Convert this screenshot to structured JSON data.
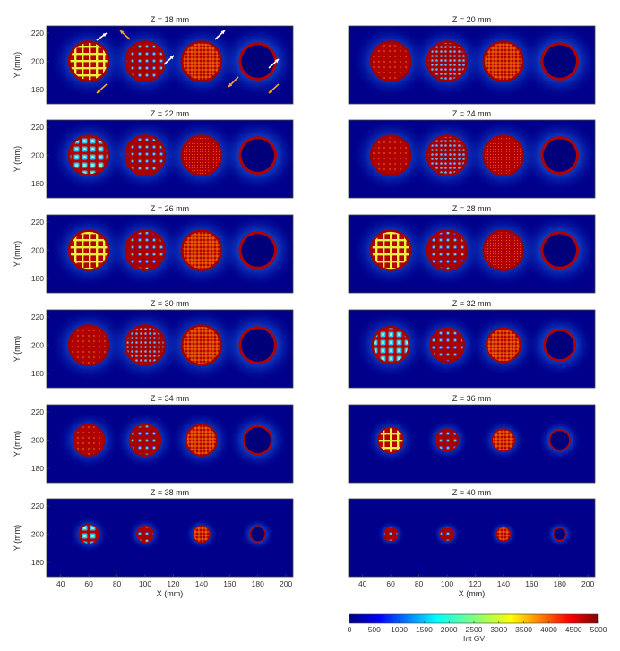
{
  "figure": {
    "colorbar": {
      "label": "Int GV",
      "ticks": [
        0,
        500,
        1000,
        1500,
        2000,
        2500,
        3000,
        3500,
        4000,
        4500,
        5000
      ],
      "range": [
        0,
        5000
      ],
      "colormap": "jet"
    },
    "x_axis_label": "X (mm)",
    "y_axis_label": "Y (mm)"
  },
  "chart_data": [
    {
      "type": "heatmap",
      "title": "Z = 18 mm",
      "z_mm": 18,
      "xlim": [
        30,
        205
      ],
      "ylim": [
        170,
        225
      ],
      "xticks": [
        40,
        60,
        80,
        100,
        120,
        140,
        160,
        180,
        200
      ],
      "yticks": [
        180,
        200,
        220
      ],
      "show_xticks": false,
      "show_yticks": true,
      "xlabel": "",
      "ylabel": "Y (mm)",
      "circles": [
        {
          "cx": 60,
          "r": 14,
          "pattern": "grid-coarse"
        },
        {
          "cx": 100,
          "r": 14,
          "pattern": "holes"
        },
        {
          "cx": 140,
          "r": 14,
          "pattern": "grid-fine"
        },
        {
          "cx": 180,
          "r": 14,
          "pattern": "ring"
        }
      ],
      "annotations": [
        {
          "type": "arrow",
          "color": "#ffffff",
          "count": 4
        },
        {
          "type": "arrow",
          "color": "#f5a623",
          "count": 4
        }
      ]
    },
    {
      "type": "heatmap",
      "title": "Z = 20 mm",
      "z_mm": 20,
      "xlim": [
        30,
        205
      ],
      "ylim": [
        170,
        225
      ],
      "xticks": [
        40,
        60,
        80,
        100,
        120,
        140,
        160,
        180,
        200
      ],
      "yticks": [
        180,
        200,
        220
      ],
      "show_xticks": false,
      "show_yticks": false,
      "xlabel": "",
      "ylabel": "",
      "circles": [
        {
          "cx": 60,
          "r": 14,
          "pattern": "solid"
        },
        {
          "cx": 100,
          "r": 14,
          "pattern": "holes-fine"
        },
        {
          "cx": 140,
          "r": 14,
          "pattern": "grid-fine"
        },
        {
          "cx": 180,
          "r": 14,
          "pattern": "ring"
        }
      ]
    },
    {
      "type": "heatmap",
      "title": "Z = 22 mm",
      "z_mm": 22,
      "xlim": [
        30,
        205
      ],
      "ylim": [
        170,
        225
      ],
      "xticks": [
        40,
        60,
        80,
        100,
        120,
        140,
        160,
        180,
        200
      ],
      "yticks": [
        180,
        200,
        220
      ],
      "show_xticks": false,
      "show_yticks": true,
      "xlabel": "",
      "ylabel": "Y (mm)",
      "circles": [
        {
          "cx": 60,
          "r": 14,
          "pattern": "holes-big"
        },
        {
          "cx": 100,
          "r": 14,
          "pattern": "holes"
        },
        {
          "cx": 140,
          "r": 14,
          "pattern": "solid-fine"
        },
        {
          "cx": 180,
          "r": 14,
          "pattern": "ring"
        }
      ]
    },
    {
      "type": "heatmap",
      "title": "Z = 24 mm",
      "z_mm": 24,
      "xlim": [
        30,
        205
      ],
      "ylim": [
        170,
        225
      ],
      "xticks": [
        40,
        60,
        80,
        100,
        120,
        140,
        160,
        180,
        200
      ],
      "yticks": [
        180,
        200,
        220
      ],
      "show_xticks": false,
      "show_yticks": false,
      "xlabel": "",
      "ylabel": "",
      "circles": [
        {
          "cx": 60,
          "r": 14,
          "pattern": "solid"
        },
        {
          "cx": 100,
          "r": 14,
          "pattern": "holes-fine"
        },
        {
          "cx": 140,
          "r": 14,
          "pattern": "solid-fine"
        },
        {
          "cx": 180,
          "r": 14,
          "pattern": "ring"
        }
      ]
    },
    {
      "type": "heatmap",
      "title": "Z = 26 mm",
      "z_mm": 26,
      "xlim": [
        30,
        205
      ],
      "ylim": [
        170,
        225
      ],
      "xticks": [
        40,
        60,
        80,
        100,
        120,
        140,
        160,
        180,
        200
      ],
      "yticks": [
        180,
        200,
        220
      ],
      "show_xticks": false,
      "show_yticks": true,
      "xlabel": "",
      "ylabel": "Y (mm)",
      "circles": [
        {
          "cx": 60,
          "r": 14,
          "pattern": "grid-coarse"
        },
        {
          "cx": 100,
          "r": 14,
          "pattern": "holes"
        },
        {
          "cx": 140,
          "r": 14,
          "pattern": "grid-fine"
        },
        {
          "cx": 180,
          "r": 14,
          "pattern": "ring"
        }
      ]
    },
    {
      "type": "heatmap",
      "title": "Z = 28 mm",
      "z_mm": 28,
      "xlim": [
        30,
        205
      ],
      "ylim": [
        170,
        225
      ],
      "xticks": [
        40,
        60,
        80,
        100,
        120,
        140,
        160,
        180,
        200
      ],
      "yticks": [
        180,
        200,
        220
      ],
      "show_xticks": false,
      "show_yticks": false,
      "xlabel": "",
      "ylabel": "",
      "circles": [
        {
          "cx": 60,
          "r": 14,
          "pattern": "grid-coarse"
        },
        {
          "cx": 100,
          "r": 14,
          "pattern": "holes"
        },
        {
          "cx": 140,
          "r": 14,
          "pattern": "solid-fine"
        },
        {
          "cx": 180,
          "r": 14,
          "pattern": "ring"
        }
      ]
    },
    {
      "type": "heatmap",
      "title": "Z = 30 mm",
      "z_mm": 30,
      "xlim": [
        30,
        205
      ],
      "ylim": [
        170,
        225
      ],
      "xticks": [
        40,
        60,
        80,
        100,
        120,
        140,
        160,
        180,
        200
      ],
      "yticks": [
        180,
        200,
        220
      ],
      "show_xticks": false,
      "show_yticks": true,
      "xlabel": "",
      "ylabel": "Y (mm)",
      "circles": [
        {
          "cx": 60,
          "r": 14,
          "pattern": "solid"
        },
        {
          "cx": 100,
          "r": 14,
          "pattern": "holes-fine"
        },
        {
          "cx": 140,
          "r": 14,
          "pattern": "grid-fine"
        },
        {
          "cx": 180,
          "r": 14,
          "pattern": "ring"
        }
      ]
    },
    {
      "type": "heatmap",
      "title": "Z = 32 mm",
      "z_mm": 32,
      "xlim": [
        30,
        205
      ],
      "ylim": [
        170,
        225
      ],
      "xticks": [
        40,
        60,
        80,
        100,
        120,
        140,
        160,
        180,
        200
      ],
      "yticks": [
        180,
        200,
        220
      ],
      "show_xticks": false,
      "show_yticks": false,
      "xlabel": "",
      "ylabel": "",
      "circles": [
        {
          "cx": 60,
          "r": 13,
          "pattern": "holes-big"
        },
        {
          "cx": 100,
          "r": 12,
          "pattern": "holes"
        },
        {
          "cx": 140,
          "r": 12,
          "pattern": "grid-fine"
        },
        {
          "cx": 180,
          "r": 12,
          "pattern": "ring"
        }
      ]
    },
    {
      "type": "heatmap",
      "title": "Z = 34 mm",
      "z_mm": 34,
      "xlim": [
        30,
        205
      ],
      "ylim": [
        170,
        225
      ],
      "xticks": [
        40,
        60,
        80,
        100,
        120,
        140,
        160,
        180,
        200
      ],
      "yticks": [
        180,
        200,
        220
      ],
      "show_xticks": false,
      "show_yticks": true,
      "xlabel": "",
      "ylabel": "Y (mm)",
      "circles": [
        {
          "cx": 60,
          "r": 11,
          "pattern": "solid"
        },
        {
          "cx": 100,
          "r": 11,
          "pattern": "holes"
        },
        {
          "cx": 140,
          "r": 11,
          "pattern": "grid-fine"
        },
        {
          "cx": 180,
          "r": 11,
          "pattern": "ring"
        }
      ]
    },
    {
      "type": "heatmap",
      "title": "Z = 36 mm",
      "z_mm": 36,
      "xlim": [
        30,
        205
      ],
      "ylim": [
        170,
        225
      ],
      "xticks": [
        40,
        60,
        80,
        100,
        120,
        140,
        160,
        180,
        200
      ],
      "yticks": [
        180,
        200,
        220
      ],
      "show_xticks": false,
      "show_yticks": false,
      "xlabel": "",
      "ylabel": "",
      "circles": [
        {
          "cx": 60,
          "r": 9,
          "pattern": "grid-coarse"
        },
        {
          "cx": 100,
          "r": 8,
          "pattern": "holes"
        },
        {
          "cx": 140,
          "r": 8,
          "pattern": "grid-fine"
        },
        {
          "cx": 180,
          "r": 8,
          "pattern": "ring"
        }
      ]
    },
    {
      "type": "heatmap",
      "title": "Z = 38 mm",
      "z_mm": 38,
      "xlim": [
        30,
        205
      ],
      "ylim": [
        170,
        225
      ],
      "xticks": [
        40,
        60,
        80,
        100,
        120,
        140,
        160,
        180,
        200
      ],
      "yticks": [
        180,
        200,
        220
      ],
      "show_xticks": true,
      "show_yticks": true,
      "xlabel": "X (mm)",
      "ylabel": "Y (mm)",
      "circles": [
        {
          "cx": 60,
          "r": 7,
          "pattern": "holes-big"
        },
        {
          "cx": 100,
          "r": 6,
          "pattern": "holes"
        },
        {
          "cx": 140,
          "r": 6,
          "pattern": "grid-fine"
        },
        {
          "cx": 180,
          "r": 6,
          "pattern": "ring"
        }
      ]
    },
    {
      "type": "heatmap",
      "title": "Z = 40 mm",
      "z_mm": 40,
      "xlim": [
        30,
        205
      ],
      "ylim": [
        170,
        225
      ],
      "xticks": [
        40,
        60,
        80,
        100,
        120,
        140,
        160,
        180,
        200
      ],
      "yticks": [
        180,
        200,
        220
      ],
      "show_xticks": true,
      "show_yticks": false,
      "xlabel": "X (mm)",
      "ylabel": "",
      "circles": [
        {
          "cx": 60,
          "r": 5,
          "pattern": "holes"
        },
        {
          "cx": 100,
          "r": 5,
          "pattern": "holes"
        },
        {
          "cx": 140,
          "r": 5,
          "pattern": "grid-fine"
        },
        {
          "cx": 180,
          "r": 5,
          "pattern": "ring"
        }
      ]
    }
  ]
}
